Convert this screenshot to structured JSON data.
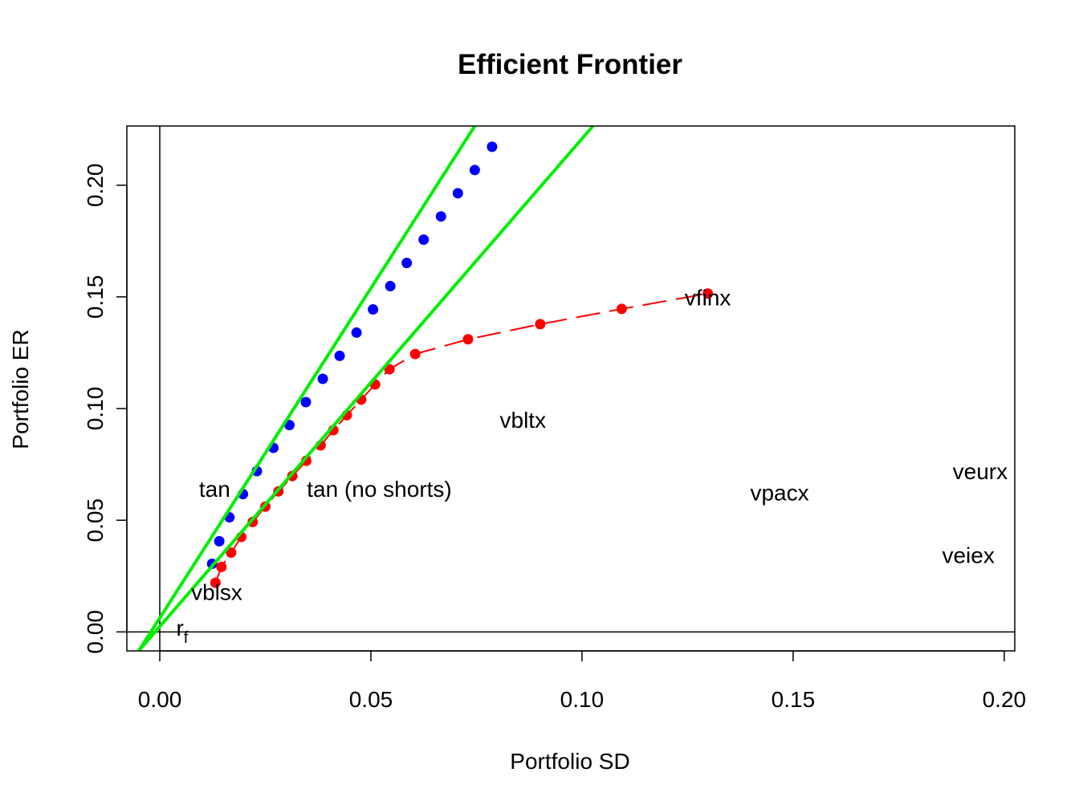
{
  "chart_data": {
    "type": "scatter",
    "title": "Efficient Frontier",
    "xlabel": "Portfolio SD",
    "ylabel": "Portfolio ER",
    "xlim": [
      -0.0078,
      0.2025
    ],
    "ylim": [
      -0.0085,
      0.2265
    ],
    "x_ticks": [
      0.0,
      0.05,
      0.1,
      0.15,
      0.2
    ],
    "x_tick_labels": [
      "0.00",
      "0.05",
      "0.10",
      "0.15",
      "0.20"
    ],
    "y_ticks": [
      0.0,
      0.05,
      0.1,
      0.15,
      0.2
    ],
    "y_tick_labels": [
      "0.00",
      "0.05",
      "0.10",
      "0.15",
      "0.20"
    ],
    "reference_lines": {
      "h": 0,
      "v": 0
    },
    "colors": {
      "frontier_shorts": "#0000ff",
      "frontier_no_shorts": "#ff0000",
      "tangent_lines": "#00ee00",
      "axes": "#000000"
    },
    "series": [
      {
        "color": "#0000ff",
        "marker": "filled-circle",
        "points": [
          [
            0.0124,
            0.0305
          ],
          [
            0.0141,
            0.0406
          ],
          [
            0.0165,
            0.0513
          ],
          [
            0.0197,
            0.0617
          ],
          [
            0.023,
            0.072
          ],
          [
            0.0269,
            0.0824
          ],
          [
            0.0307,
            0.0926
          ],
          [
            0.0346,
            0.1029
          ],
          [
            0.0386,
            0.1133
          ],
          [
            0.0426,
            0.1236
          ],
          [
            0.0466,
            0.134
          ],
          [
            0.0505,
            0.1444
          ],
          [
            0.0546,
            0.1548
          ],
          [
            0.0585,
            0.1652
          ],
          [
            0.0625,
            0.1756
          ],
          [
            0.0666,
            0.186
          ],
          [
            0.0706,
            0.1964
          ],
          [
            0.0746,
            0.2068
          ],
          [
            0.0787,
            0.2172
          ]
        ]
      },
      {
        "color": "#ff0000",
        "marker": "filled-circle",
        "line": "dashed",
        "points": [
          [
            0.0132,
            0.022
          ],
          [
            0.0146,
            0.0291
          ],
          [
            0.0169,
            0.0355
          ],
          [
            0.0193,
            0.0425
          ],
          [
            0.022,
            0.0492
          ],
          [
            0.025,
            0.0561
          ],
          [
            0.0281,
            0.0629
          ],
          [
            0.0314,
            0.0698
          ],
          [
            0.0347,
            0.0766
          ],
          [
            0.0381,
            0.0835
          ],
          [
            0.0411,
            0.0903
          ],
          [
            0.0443,
            0.097
          ],
          [
            0.0477,
            0.104
          ],
          [
            0.051,
            0.1108
          ],
          [
            0.0544,
            0.1176
          ],
          [
            0.0605,
            0.1244
          ],
          [
            0.073,
            0.131
          ],
          [
            0.0901,
            0.1378
          ],
          [
            0.1094,
            0.1446
          ],
          [
            0.1298,
            0.1515
          ]
        ]
      },
      {
        "color": "#00ee00",
        "line": "solid",
        "segment": [
          [
            -0.005,
            -0.0085
          ],
          [
            0.0746,
            0.2265
          ]
        ]
      },
      {
        "color": "#00ee00",
        "line": "solid",
        "segment": [
          [
            -0.005,
            -0.0085
          ],
          [
            0.1026,
            0.2265
          ]
        ]
      }
    ],
    "annotations": [
      {
        "text": "vfinx",
        "x": 0.1298,
        "y": 0.1498
      },
      {
        "text": "vbltx",
        "x": 0.086,
        "y": 0.095
      },
      {
        "text": "tan",
        "x": 0.013,
        "y": 0.064
      },
      {
        "text": "tan (no shorts)",
        "x": 0.052,
        "y": 0.064
      },
      {
        "text": "vpacx",
        "x": 0.1468,
        "y": 0.0624
      },
      {
        "text": "veurx",
        "x": 0.1943,
        "y": 0.072
      },
      {
        "text": "veiex",
        "x": 0.1915,
        "y": 0.0345
      },
      {
        "text": "vblsx",
        "x": 0.0135,
        "y": 0.018
      },
      {
        "text": "r",
        "subscript": "f",
        "x": 0.0053,
        "y": 0.002
      }
    ]
  }
}
